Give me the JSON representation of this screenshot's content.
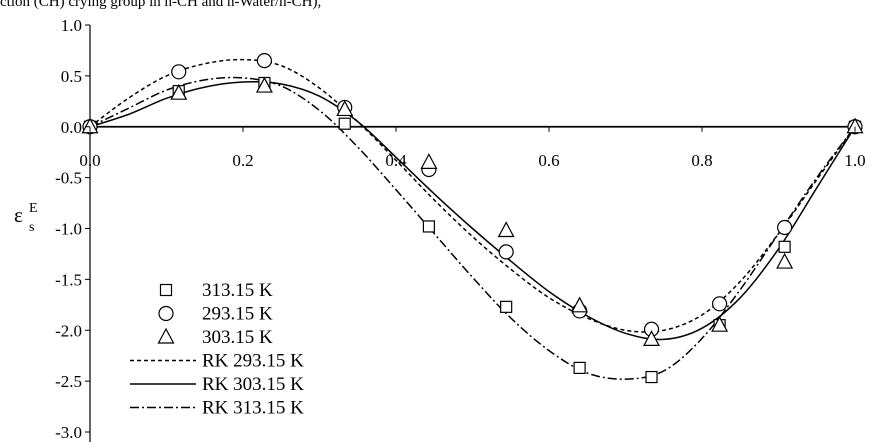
{
  "caption_fragment": "ction (CH) crying group in n-CH and n-Water/n-CH),",
  "chart_data": {
    "type": "scatter",
    "title": "",
    "xlabel": "",
    "ylabel_main": "ε",
    "ylabel_sub": "s",
    "ylabel_sup": "E",
    "xlim": [
      0.0,
      1.0
    ],
    "ylim": [
      -3.0,
      1.0
    ],
    "x_ticks": [
      0.0,
      0.2,
      0.4,
      0.6,
      0.8,
      1.0
    ],
    "x_tick_labels": [
      "0.0",
      "0.2",
      "0.4",
      "0.6",
      "0.8",
      "1.0"
    ],
    "y_ticks": [
      1.0,
      0.5,
      0.0,
      -0.5,
      -1.0,
      -1.5,
      -2.0,
      -2.5,
      -3.0
    ],
    "y_tick_labels": [
      "1.0",
      "0.5",
      "0.0",
      "-0.5",
      "-1.0",
      "-1.5",
      "-2.0",
      "-2.5",
      "-3.0"
    ],
    "grid": false,
    "legend_position": "bottom-left",
    "series": [
      {
        "name": "313.15 K",
        "marker": "square",
        "x": [
          0.0,
          0.116,
          0.228,
          0.333,
          0.443,
          0.544,
          0.64,
          0.734,
          0.823,
          0.908,
          1.0
        ],
        "y": [
          0.0,
          0.35,
          0.43,
          0.03,
          -0.98,
          -1.77,
          -2.37,
          -2.46,
          -1.95,
          -1.18,
          0.0
        ]
      },
      {
        "name": "293.15 K",
        "marker": "circle",
        "x": [
          0.0,
          0.116,
          0.228,
          0.333,
          0.443,
          0.544,
          0.64,
          0.734,
          0.823,
          0.908,
          1.0
        ],
        "y": [
          0.0,
          0.54,
          0.65,
          0.19,
          -0.42,
          -1.23,
          -1.81,
          -1.99,
          -1.74,
          -0.99,
          0.0
        ]
      },
      {
        "name": "303.15 K",
        "marker": "triangle",
        "x": [
          0.0,
          0.116,
          0.228,
          0.333,
          0.443,
          0.544,
          0.64,
          0.734,
          0.823,
          0.908,
          1.0
        ],
        "y": [
          0.0,
          0.33,
          0.4,
          0.17,
          -0.35,
          -1.02,
          -1.76,
          -2.09,
          -1.95,
          -1.33,
          0.0
        ]
      },
      {
        "name": "RK 293.15 K",
        "line": "dashed",
        "x": [
          0.0,
          0.05,
          0.1,
          0.15,
          0.2,
          0.25,
          0.3,
          0.35,
          0.4,
          0.45,
          0.5,
          0.55,
          0.6,
          0.65,
          0.7,
          0.75,
          0.8,
          0.85,
          0.9,
          0.95,
          1.0
        ],
        "y": [
          0.0,
          0.28,
          0.5,
          0.62,
          0.66,
          0.6,
          0.38,
          0.05,
          -0.33,
          -0.72,
          -1.08,
          -1.4,
          -1.68,
          -1.88,
          -2.0,
          -2.0,
          -1.85,
          -1.52,
          -1.05,
          -0.52,
          0.0
        ]
      },
      {
        "name": "RK 303.15 K",
        "line": "solid",
        "x": [
          0.0,
          0.05,
          0.1,
          0.15,
          0.2,
          0.25,
          0.3,
          0.35,
          0.4,
          0.45,
          0.5,
          0.55,
          0.6,
          0.65,
          0.7,
          0.75,
          0.8,
          0.85,
          0.9,
          0.95,
          1.0
        ],
        "y": [
          0.0,
          0.12,
          0.28,
          0.39,
          0.44,
          0.42,
          0.3,
          0.05,
          -0.3,
          -0.66,
          -1.0,
          -1.32,
          -1.62,
          -1.86,
          -2.03,
          -2.09,
          -1.98,
          -1.68,
          -1.2,
          -0.6,
          0.0
        ]
      },
      {
        "name": "RK 313.15 K",
        "line": "dash-dot",
        "x": [
          0.0,
          0.05,
          0.1,
          0.15,
          0.2,
          0.25,
          0.3,
          0.35,
          0.4,
          0.45,
          0.5,
          0.55,
          0.6,
          0.65,
          0.7,
          0.75,
          0.8,
          0.85,
          0.9,
          0.95,
          1.0
        ],
        "y": [
          0.0,
          0.18,
          0.36,
          0.46,
          0.48,
          0.4,
          0.16,
          -0.2,
          -0.62,
          -1.05,
          -1.48,
          -1.88,
          -2.2,
          -2.42,
          -2.48,
          -2.4,
          -2.08,
          -1.6,
          -1.05,
          -0.5,
          0.0
        ]
      }
    ]
  }
}
